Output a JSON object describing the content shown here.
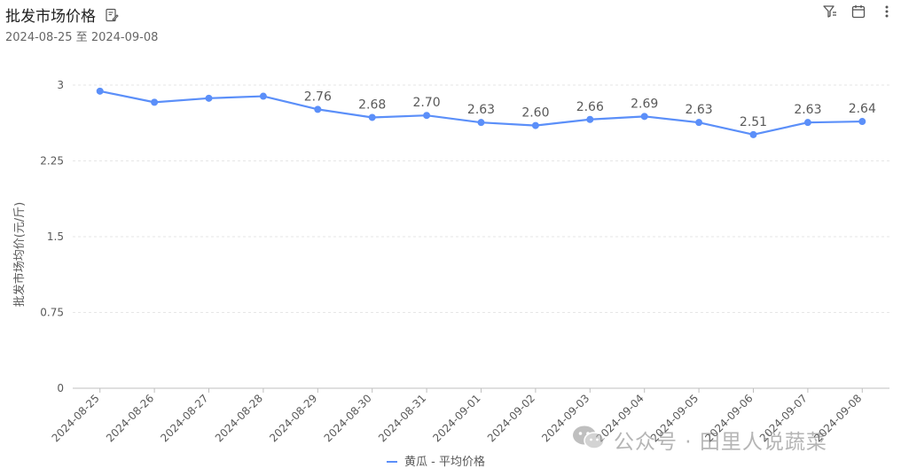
{
  "header": {
    "title": "批发市场价格",
    "subtitle": "2024-08-25 至 2024-09-08",
    "title_icon": "document-edit-icon"
  },
  "toolbar": {
    "filter_icon": "filter-icon",
    "calendar_icon": "calendar-icon",
    "more_icon": "more-vertical-icon"
  },
  "watermark": {
    "text": "公众号 · 田里人说蔬菜",
    "icon": "wechat-icon"
  },
  "colors": {
    "series": "#5b8ff9",
    "grid": "#e6e6e6",
    "axis": "#bfbfbf",
    "label": "#595959"
  },
  "chart_data": {
    "type": "line",
    "title": "批发市场价格",
    "xlabel": "",
    "ylabel": "批发市场均价(元/斤)",
    "categories": [
      "2024-08-25",
      "2024-08-26",
      "2024-08-27",
      "2024-08-28",
      "2024-08-29",
      "2024-08-30",
      "2024-08-31",
      "2024-09-01",
      "2024-09-02",
      "2024-09-03",
      "2024-09-04",
      "2024-09-05",
      "2024-09-06",
      "2024-09-07",
      "2024-09-08"
    ],
    "series": [
      {
        "name": "黄瓜 - 平均价格",
        "values": [
          2.94,
          2.83,
          2.87,
          2.89,
          2.76,
          2.68,
          2.7,
          2.63,
          2.6,
          2.66,
          2.69,
          2.63,
          2.51,
          2.63,
          2.64
        ],
        "data_labels": [
          "",
          "",
          "",
          "",
          "2.76",
          "2.68",
          "2.70",
          "2.63",
          "2.60",
          "2.66",
          "2.69",
          "2.63",
          "2.51",
          "2.63",
          "2.64"
        ]
      }
    ],
    "y_ticks": [
      "0",
      "0.75",
      "1.5",
      "2.25",
      "3"
    ],
    "y_tick_values": [
      0,
      0.75,
      1.5,
      2.25,
      3
    ],
    "ylim": [
      0,
      3.2
    ],
    "grid": true,
    "legend_position": "bottom"
  }
}
